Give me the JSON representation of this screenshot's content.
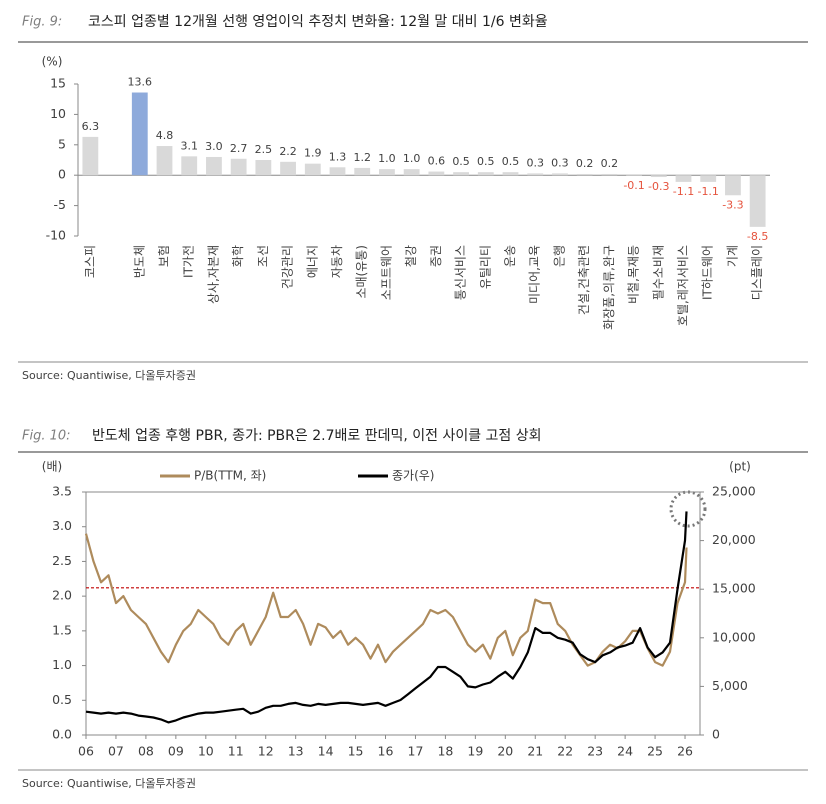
{
  "chart_data": [
    {
      "type": "bar",
      "figure_label": "Fig. 9:",
      "title": "코스피 업종별 12개월 선행 영업이익 추정치 변화율: 12월 말 대비 1/6 변화율",
      "y_unit": "(%)",
      "source": "Source: Quantiwise,  다올투자증권",
      "categories": [
        "코스피",
        null,
        "반도체",
        "보험",
        "IT가전",
        "상사,자본재",
        "화학",
        "조선",
        "건강관리",
        "에너지",
        "자동차",
        "소매(유통)",
        "소프트웨어",
        "철강",
        "증권",
        "통신서비스",
        "유틸리티",
        "운송",
        "미디어,교육",
        "은행",
        "건설,건축관련",
        "화장품,의류,완구",
        "비철,목재등",
        "필수소비재",
        "호텔,레저서비스",
        "IT하드웨어",
        "기계",
        "디스플레이"
      ],
      "values": [
        6.3,
        null,
        13.6,
        4.8,
        3.1,
        3.0,
        2.7,
        2.5,
        2.2,
        1.9,
        1.3,
        1.2,
        1.0,
        1.0,
        0.6,
        0.5,
        0.5,
        0.5,
        0.3,
        0.3,
        0.2,
        0.2,
        -0.1,
        -0.3,
        -1.1,
        -1.1,
        -3.3,
        -8.5
      ],
      "value_labels": [
        "6.3",
        null,
        "13.6",
        "4.8",
        "3.1",
        "3.0",
        "2.7",
        "2.5",
        "2.2",
        "1.9",
        "1.3",
        "1.2",
        "1.0",
        "1.0",
        "0.6",
        "0.5",
        "0.5",
        "0.5",
        "0.3",
        "0.3",
        "0.2",
        "0.2",
        "-0.1",
        "-0.3",
        "-1.1",
        "-1.1",
        "-3.3",
        "-8.5"
      ],
      "colors": [
        "#d9d9d9",
        null,
        "#8eaadb",
        "#d9d9d9",
        "#d9d9d9",
        "#d9d9d9",
        "#d9d9d9",
        "#d9d9d9",
        "#d9d9d9",
        "#d9d9d9",
        "#d9d9d9",
        "#d9d9d9",
        "#d9d9d9",
        "#d9d9d9",
        "#d9d9d9",
        "#d9d9d9",
        "#d9d9d9",
        "#d9d9d9",
        "#d9d9d9",
        "#d9d9d9",
        "#d9d9d9",
        "#d9d9d9",
        "#d9d9d9",
        "#d9d9d9",
        "#d9d9d9",
        "#d9d9d9",
        "#d9d9d9",
        "#d9d9d9"
      ],
      "negative_label_color": "#e5533d",
      "ylim": [
        -10,
        15
      ],
      "yticks": [
        -10,
        -5,
        0,
        5,
        10,
        15
      ],
      "grid": false
    },
    {
      "type": "line",
      "figure_label": "Fig. 10:",
      "title": "반도체 업종 후행 PBR, 종가: PBR은 2.7배로 판데믹, 이전 사이클 고점 상회",
      "y_unit": "(배)",
      "y2_unit": "(pt)",
      "source": "Source: Quantiwise,  다올투자증권",
      "x": [
        6,
        6.25,
        6.5,
        6.75,
        7,
        7.25,
        7.5,
        7.75,
        8,
        8.25,
        8.5,
        8.75,
        9,
        9.25,
        9.5,
        9.75,
        10,
        10.25,
        10.5,
        10.75,
        11,
        11.25,
        11.5,
        11.75,
        12,
        12.25,
        12.5,
        12.75,
        13,
        13.25,
        13.5,
        13.75,
        14,
        14.25,
        14.5,
        14.75,
        15,
        15.25,
        15.5,
        15.75,
        16,
        16.25,
        16.5,
        16.75,
        17,
        17.25,
        17.5,
        17.75,
        18,
        18.25,
        18.5,
        18.75,
        19,
        19.25,
        19.5,
        19.75,
        20,
        20.25,
        20.5,
        20.75,
        21,
        21.25,
        21.5,
        21.75,
        22,
        22.25,
        22.5,
        22.75,
        23,
        23.25,
        23.5,
        23.75,
        24,
        24.25,
        24.5,
        24.75,
        25,
        25.25,
        25.5,
        25.75,
        26,
        26.05
      ],
      "series": [
        {
          "name": "P/B(TTM, 좌)",
          "color": "#ae8b5c",
          "axis": "y",
          "values": [
            2.9,
            2.5,
            2.2,
            2.3,
            1.9,
            2.0,
            1.8,
            1.7,
            1.6,
            1.4,
            1.2,
            1.05,
            1.3,
            1.5,
            1.6,
            1.8,
            1.7,
            1.6,
            1.4,
            1.3,
            1.5,
            1.6,
            1.3,
            1.5,
            1.7,
            2.05,
            1.7,
            1.7,
            1.8,
            1.6,
            1.3,
            1.6,
            1.55,
            1.4,
            1.5,
            1.3,
            1.4,
            1.3,
            1.1,
            1.3,
            1.05,
            1.2,
            1.3,
            1.4,
            1.5,
            1.6,
            1.8,
            1.75,
            1.8,
            1.7,
            1.5,
            1.3,
            1.2,
            1.3,
            1.1,
            1.4,
            1.5,
            1.15,
            1.4,
            1.5,
            1.95,
            1.9,
            1.9,
            1.6,
            1.5,
            1.3,
            1.15,
            1.0,
            1.05,
            1.2,
            1.3,
            1.25,
            1.35,
            1.5,
            1.5,
            1.25,
            1.05,
            1.0,
            1.2,
            1.9,
            2.2,
            2.7
          ]
        },
        {
          "name": "종가(우)",
          "color": "#000000",
          "axis": "y2",
          "values": [
            2400,
            2300,
            2200,
            2300,
            2200,
            2300,
            2200,
            2000,
            1900,
            1800,
            1600,
            1300,
            1500,
            1800,
            2000,
            2200,
            2300,
            2300,
            2400,
            2500,
            2600,
            2700,
            2200,
            2400,
            2800,
            3000,
            3000,
            3200,
            3300,
            3100,
            3000,
            3200,
            3100,
            3200,
            3300,
            3300,
            3200,
            3100,
            3200,
            3300,
            3000,
            3300,
            3600,
            4200,
            4800,
            5400,
            6000,
            7000,
            7000,
            6500,
            6000,
            5000,
            4900,
            5200,
            5400,
            6000,
            6500,
            5800,
            7000,
            8500,
            11000,
            10500,
            10500,
            10000,
            9800,
            9500,
            8300,
            7800,
            7500,
            8200,
            8500,
            9000,
            9200,
            9500,
            11000,
            9000,
            8000,
            8500,
            9500,
            15000,
            20000,
            23000
          ]
        }
      ],
      "reference_line": {
        "value": 2.12,
        "color": "#c00000"
      },
      "xlim": [
        6,
        26.5
      ],
      "xticks": [
        {
          "value": 6,
          "label": "06"
        },
        {
          "value": 7,
          "label": "07"
        },
        {
          "value": 8,
          "label": "08"
        },
        {
          "value": 9,
          "label": "09"
        },
        10,
        11,
        12,
        13,
        14,
        15,
        16,
        17,
        18,
        19,
        20,
        21,
        22,
        23,
        24,
        25,
        26
      ],
      "ylim": [
        0,
        3.5
      ],
      "yticks": [
        {
          "value": 0,
          "label": "0.0"
        },
        {
          "value": 0.5,
          "label": "0.5"
        },
        {
          "value": 1,
          "label": "1.0"
        },
        {
          "value": 1.5,
          "label": "1.5"
        },
        {
          "value": 2,
          "label": "2.0"
        },
        {
          "value": 2.5,
          "label": "2.5"
        },
        {
          "value": 3,
          "label": "3.0"
        },
        {
          "value": 3.5,
          "label": "3.5"
        }
      ],
      "y2lim": [
        0,
        25000
      ],
      "y2ticks": [
        0,
        {
          "value": 5000,
          "label": "5,000"
        },
        {
          "value": 10000,
          "label": "10,000"
        },
        {
          "value": 15000,
          "label": "15,000"
        },
        {
          "value": 20000,
          "label": "20,000"
        },
        {
          "value": 25000,
          "label": "25,000"
        }
      ],
      "legend": "top"
    }
  ]
}
